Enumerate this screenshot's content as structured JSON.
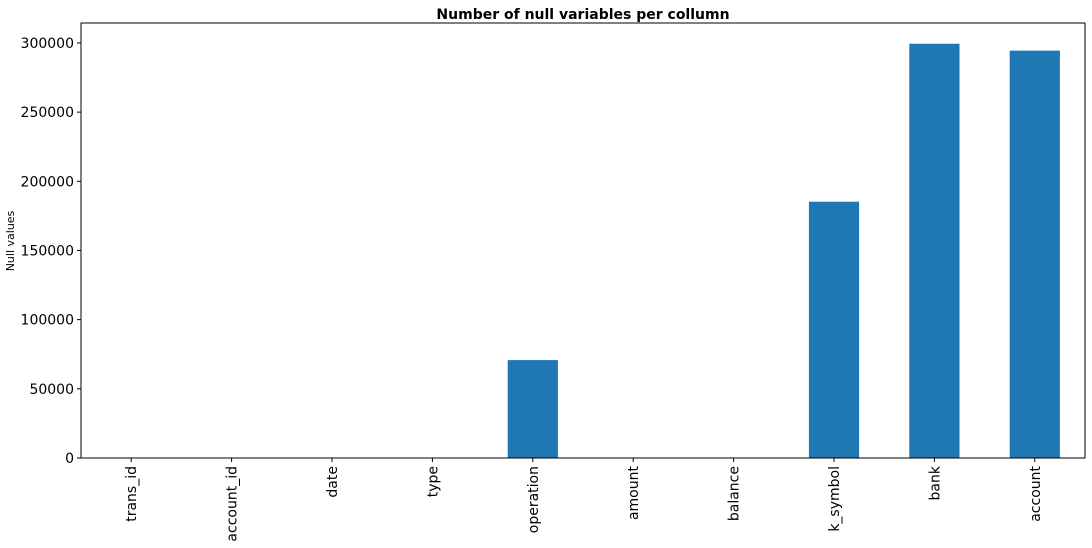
{
  "chart_data": {
    "type": "bar",
    "title": "Number of null variables per collumn",
    "xlabel": "",
    "ylabel": "Null values",
    "categories": [
      "trans_id",
      "account_id",
      "date",
      "type",
      "operation",
      "amount",
      "balance",
      "k_symbol",
      "bank",
      "account"
    ],
    "values": [
      0,
      0,
      0,
      0,
      70761,
      0,
      0,
      185244,
      299443,
      294456
    ],
    "ylim": [
      0,
      314415
    ],
    "yticks": [
      0,
      50000,
      100000,
      150000,
      200000,
      250000,
      300000
    ],
    "grid": false,
    "legend": "none",
    "bar_color": "#1f77b4"
  }
}
